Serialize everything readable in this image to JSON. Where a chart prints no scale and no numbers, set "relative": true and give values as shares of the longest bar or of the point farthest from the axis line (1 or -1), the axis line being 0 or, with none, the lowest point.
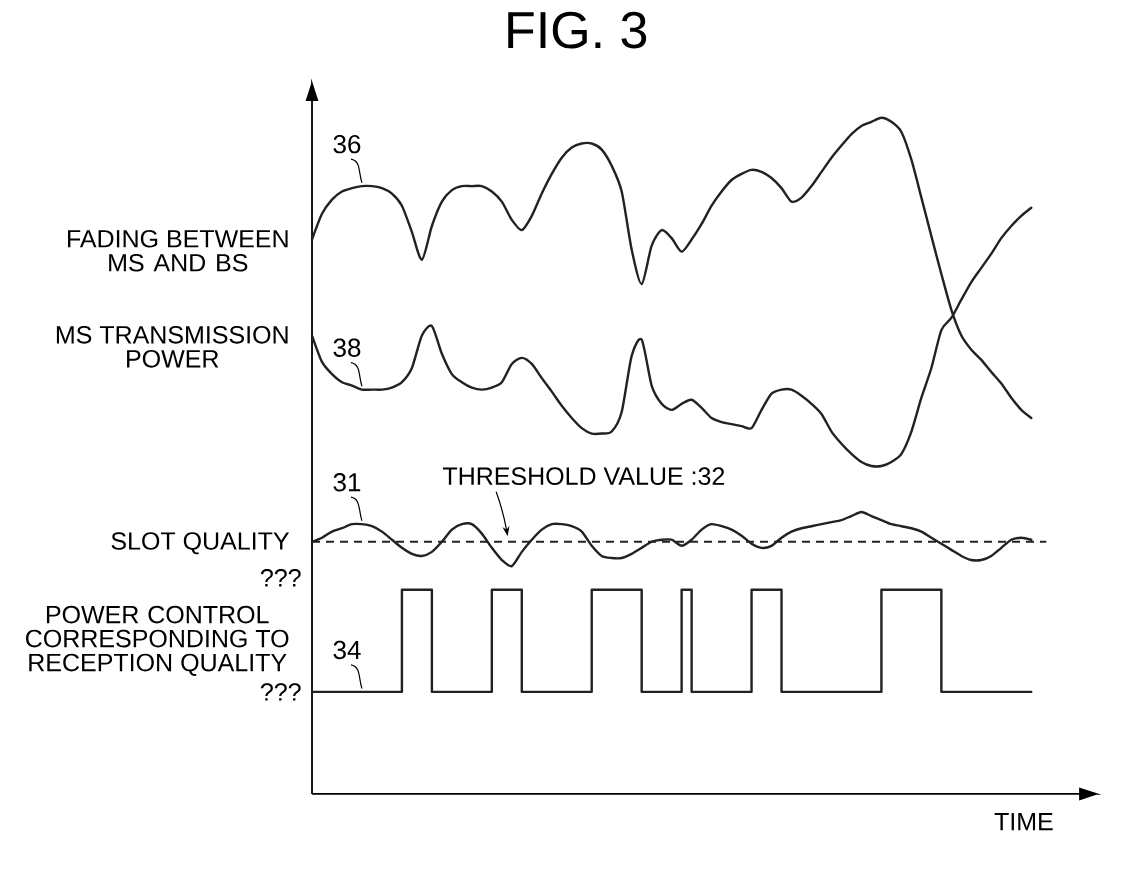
{
  "chart_data": {
    "type": "line",
    "title": "FIG. 3",
    "xlabel": "TIME",
    "relative": true,
    "categories": [
      null,
      null,
      null,
      null,
      null,
      null,
      null,
      null,
      null,
      null,
      null,
      null,
      null,
      null,
      null,
      null,
      null,
      null,
      null,
      null,
      null,
      null,
      null,
      null,
      null,
      null,
      null,
      null,
      null,
      null,
      null,
      null,
      null,
      null,
      null,
      null,
      null,
      null,
      null,
      null,
      null,
      null,
      null,
      null,
      null,
      null,
      null,
      null,
      null,
      null,
      null,
      null,
      null,
      null,
      null,
      null,
      null,
      null,
      null,
      null,
      null,
      null,
      null,
      null,
      null,
      null,
      null,
      null,
      null,
      null,
      null,
      null,
      null
    ],
    "series": [
      {
        "name": "FADING BETWEEN MS AND BS",
        "color": "#222222",
        "values": [
          0.82,
          0.858,
          0.879,
          0.891,
          0.896,
          0.899,
          0.899,
          0.896,
          0.888,
          0.87,
          0.831,
          0.79,
          0.84,
          0.876,
          0.893,
          0.899,
          0.899,
          0.899,
          0.891,
          0.876,
          0.849,
          0.834,
          0.855,
          0.888,
          0.917,
          0.941,
          0.956,
          0.962,
          0.962,
          0.953,
          0.929,
          0.891,
          0.805,
          0.754,
          0.811,
          0.834,
          0.822,
          0.802,
          0.82,
          0.843,
          0.87,
          0.891,
          0.908,
          0.917,
          0.923,
          0.92,
          0.911,
          0.896,
          0.876,
          0.882,
          0.899,
          0.92,
          0.941,
          0.959,
          0.976,
          0.988,
          0.994,
          1.0,
          0.994,
          0.979,
          0.938,
          0.882,
          0.825,
          0.769,
          0.716,
          0.678,
          0.657,
          0.642,
          0.624,
          0.607,
          0.586,
          0.568,
          0.556
        ]
      },
      {
        "name": "MS TRANSMISSION POWER",
        "color": "#222222",
        "values": [
          0.678,
          0.639,
          0.621,
          0.609,
          0.604,
          0.598,
          0.598,
          0.598,
          0.601,
          0.609,
          0.63,
          0.678,
          0.692,
          0.651,
          0.621,
          0.609,
          0.601,
          0.598,
          0.601,
          0.609,
          0.636,
          0.645,
          0.636,
          0.615,
          0.595,
          0.574,
          0.556,
          0.541,
          0.533,
          0.533,
          0.536,
          0.565,
          0.648,
          0.672,
          0.604,
          0.577,
          0.568,
          0.577,
          0.583,
          0.571,
          0.556,
          0.55,
          0.547,
          0.544,
          0.541,
          0.568,
          0.592,
          0.598,
          0.598,
          0.589,
          0.577,
          0.562,
          0.536,
          0.518,
          0.503,
          0.491,
          0.485,
          0.485,
          0.491,
          0.503,
          0.536,
          0.586,
          0.63,
          0.686,
          0.704,
          0.731,
          0.757,
          0.778,
          0.799,
          0.822,
          0.84,
          0.855,
          0.867
        ]
      },
      {
        "name": "SLOT QUALITY",
        "color": "#222222",
        "values": [
          0.373,
          0.379,
          0.388,
          0.393,
          0.399,
          0.399,
          0.396,
          0.388,
          0.376,
          0.364,
          0.355,
          0.352,
          0.358,
          0.373,
          0.391,
          0.399,
          0.399,
          0.385,
          0.364,
          0.346,
          0.337,
          0.358,
          0.376,
          0.391,
          0.399,
          0.399,
          0.396,
          0.388,
          0.367,
          0.352,
          0.349,
          0.349,
          0.355,
          0.364,
          0.373,
          0.376,
          0.376,
          0.367,
          0.376,
          0.391,
          0.399,
          0.396,
          0.391,
          0.382,
          0.37,
          0.364,
          0.367,
          0.379,
          0.388,
          0.393,
          0.396,
          0.399,
          0.402,
          0.405,
          0.411,
          0.417,
          0.411,
          0.405,
          0.399,
          0.396,
          0.393,
          0.388,
          0.379,
          0.37,
          0.361,
          0.352,
          0.346,
          0.346,
          0.352,
          0.364,
          0.376,
          0.379,
          0.376
        ]
      },
      {
        "name": "POWER CONTROL CORRESPONDING TO RECEPTION QUALITY",
        "type": "step",
        "color": "#222222",
        "values": [
          0.151,
          0.151,
          0.151,
          0.151,
          0.151,
          0.151,
          0.151,
          0.151,
          0.151,
          0.302,
          0.302,
          0.302,
          0.151,
          0.151,
          0.151,
          0.151,
          0.151,
          0.151,
          0.302,
          0.302,
          0.302,
          0.151,
          0.151,
          0.151,
          0.151,
          0.151,
          0.151,
          0.151,
          0.302,
          0.302,
          0.302,
          0.302,
          0.302,
          0.151,
          0.151,
          0.151,
          0.151,
          0.302,
          0.151,
          0.151,
          0.151,
          0.151,
          0.151,
          0.151,
          0.302,
          0.302,
          0.302,
          0.151,
          0.151,
          0.151,
          0.151,
          0.151,
          0.151,
          0.151,
          0.151,
          0.151,
          0.151,
          0.302,
          0.302,
          0.302,
          0.302,
          0.302,
          0.302,
          0.151,
          0.151,
          0.151,
          0.151,
          0.151,
          0.151,
          0.151,
          0.151,
          0.151,
          0.151
        ]
      }
    ],
    "ref_lines": [
      {
        "axis": "y",
        "value": 0.373,
        "color": "#222222",
        "line_style": "dashed"
      }
    ],
    "annotations": [
      "36",
      "38",
      "31",
      "34",
      "THRESHOLD VALUE :32",
      "???",
      "???"
    ]
  }
}
